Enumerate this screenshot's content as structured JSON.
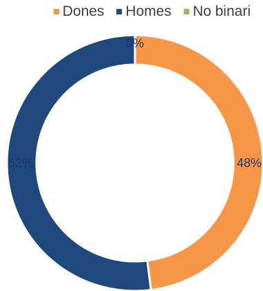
{
  "chart_data": {
    "type": "pie",
    "donut": true,
    "title": "",
    "legend_position": "top-right",
    "slices": [
      {
        "name": "Dones",
        "value": 48,
        "label": "48%",
        "color": "#f79646"
      },
      {
        "name": "Homes",
        "value": 52,
        "label": "52%",
        "color": "#1f497d"
      },
      {
        "name": "No binari",
        "value": 0,
        "label": "0%",
        "color": "#9bbb59"
      }
    ]
  }
}
